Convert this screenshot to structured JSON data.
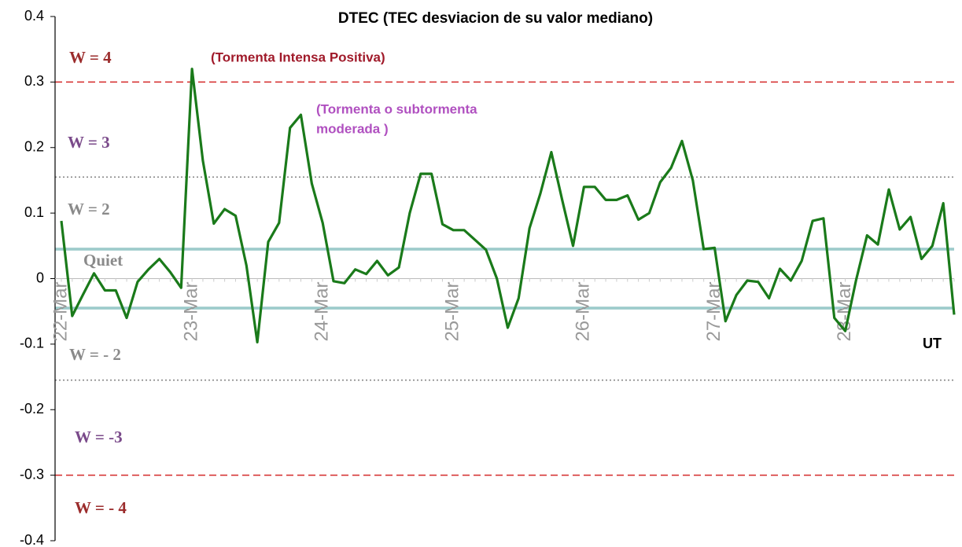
{
  "chart_data": {
    "type": "line",
    "title": "DTEC (TEC desviacion de su valor mediano)",
    "x_unit_label": "UT",
    "categories": [
      "22-Mar",
      null,
      null,
      null,
      null,
      null,
      null,
      null,
      null,
      null,
      null,
      null,
      "23-Mar",
      null,
      null,
      null,
      null,
      null,
      null,
      null,
      null,
      null,
      null,
      null,
      "24-Mar",
      null,
      null,
      null,
      null,
      null,
      null,
      null,
      null,
      null,
      null,
      null,
      "25-Mar",
      null,
      null,
      null,
      null,
      null,
      null,
      null,
      null,
      null,
      null,
      null,
      "26-Mar",
      null,
      null,
      null,
      null,
      null,
      null,
      null,
      null,
      null,
      null,
      null,
      "27-Mar",
      null,
      null,
      null,
      null,
      null,
      null,
      null,
      null,
      null,
      null,
      null,
      "28-Mar",
      null,
      null,
      null,
      null,
      null,
      null,
      null,
      null,
      null,
      null
    ],
    "series": [
      {
        "name": "DTEC",
        "color": "#1a7a1a",
        "values": [
          0.088,
          -0.057,
          -0.024,
          0.008,
          -0.018,
          -0.018,
          -0.06,
          -0.005,
          0.014,
          0.03,
          0.01,
          -0.014,
          0.32,
          0.18,
          0.084,
          0.106,
          0.096,
          0.02,
          -0.097,
          0.056,
          0.085,
          0.23,
          0.25,
          0.145,
          0.085,
          -0.004,
          -0.007,
          0.014,
          0.007,
          0.027,
          0.005,
          0.017,
          0.1,
          0.16,
          0.16,
          0.083,
          0.074,
          0.074,
          0.059,
          0.044,
          0.0,
          -0.075,
          -0.03,
          0.077,
          0.13,
          0.193,
          0.12,
          0.05,
          0.14,
          0.14,
          0.12,
          0.12,
          0.127,
          0.09,
          0.1,
          0.147,
          0.169,
          0.21,
          0.15,
          0.045,
          0.047,
          -0.065,
          -0.025,
          -0.003,
          -0.005,
          -0.03,
          0.015,
          -0.003,
          0.027,
          0.088,
          0.092,
          -0.06,
          -0.08,
          -0.002,
          0.066,
          0.052,
          0.136,
          0.075,
          0.094,
          0.03,
          0.05,
          0.115,
          -0.055
        ]
      }
    ],
    "ylim": [
      -0.4,
      0.4
    ],
    "yticks": [
      -0.4,
      -0.3,
      -0.2,
      -0.1,
      0,
      0.1,
      0.2,
      0.3,
      0.4
    ],
    "reference_lines": [
      {
        "value": 0.3,
        "color": "#d42a2a",
        "style": "dashed"
      },
      {
        "value": 0.155,
        "color": "#888888",
        "style": "dotted"
      },
      {
        "value": 0.045,
        "color": "#5fa8a8",
        "style": "solid"
      },
      {
        "value": -0.045,
        "color": "#5fa8a8",
        "style": "solid"
      },
      {
        "value": -0.155,
        "color": "#888888",
        "style": "dotted"
      },
      {
        "value": -0.3,
        "color": "#d42a2a",
        "style": "dashed"
      }
    ],
    "annotations": [
      {
        "text": "W = 4",
        "color": "#9b2c2c"
      },
      {
        "text": "W = 3",
        "color": "#7a4a8a"
      },
      {
        "text": "W = 2",
        "color": "#8a8a8a"
      },
      {
        "text": "Quiet",
        "color": "#8a8a8a"
      },
      {
        "text": "W = - 2",
        "color": "#8a8a8a"
      },
      {
        "text": "W = -3",
        "color": "#7a4a8a"
      },
      {
        "text": "W = - 4",
        "color": "#9b2c2c"
      },
      {
        "text": "(Tormenta Intensa Positiva)",
        "color": "#a01a2a"
      },
      {
        "text": "(Tormenta o subtormenta",
        "color": "#b050c0"
      },
      {
        "text": "moderada )",
        "color": "#b050c0"
      }
    ]
  }
}
